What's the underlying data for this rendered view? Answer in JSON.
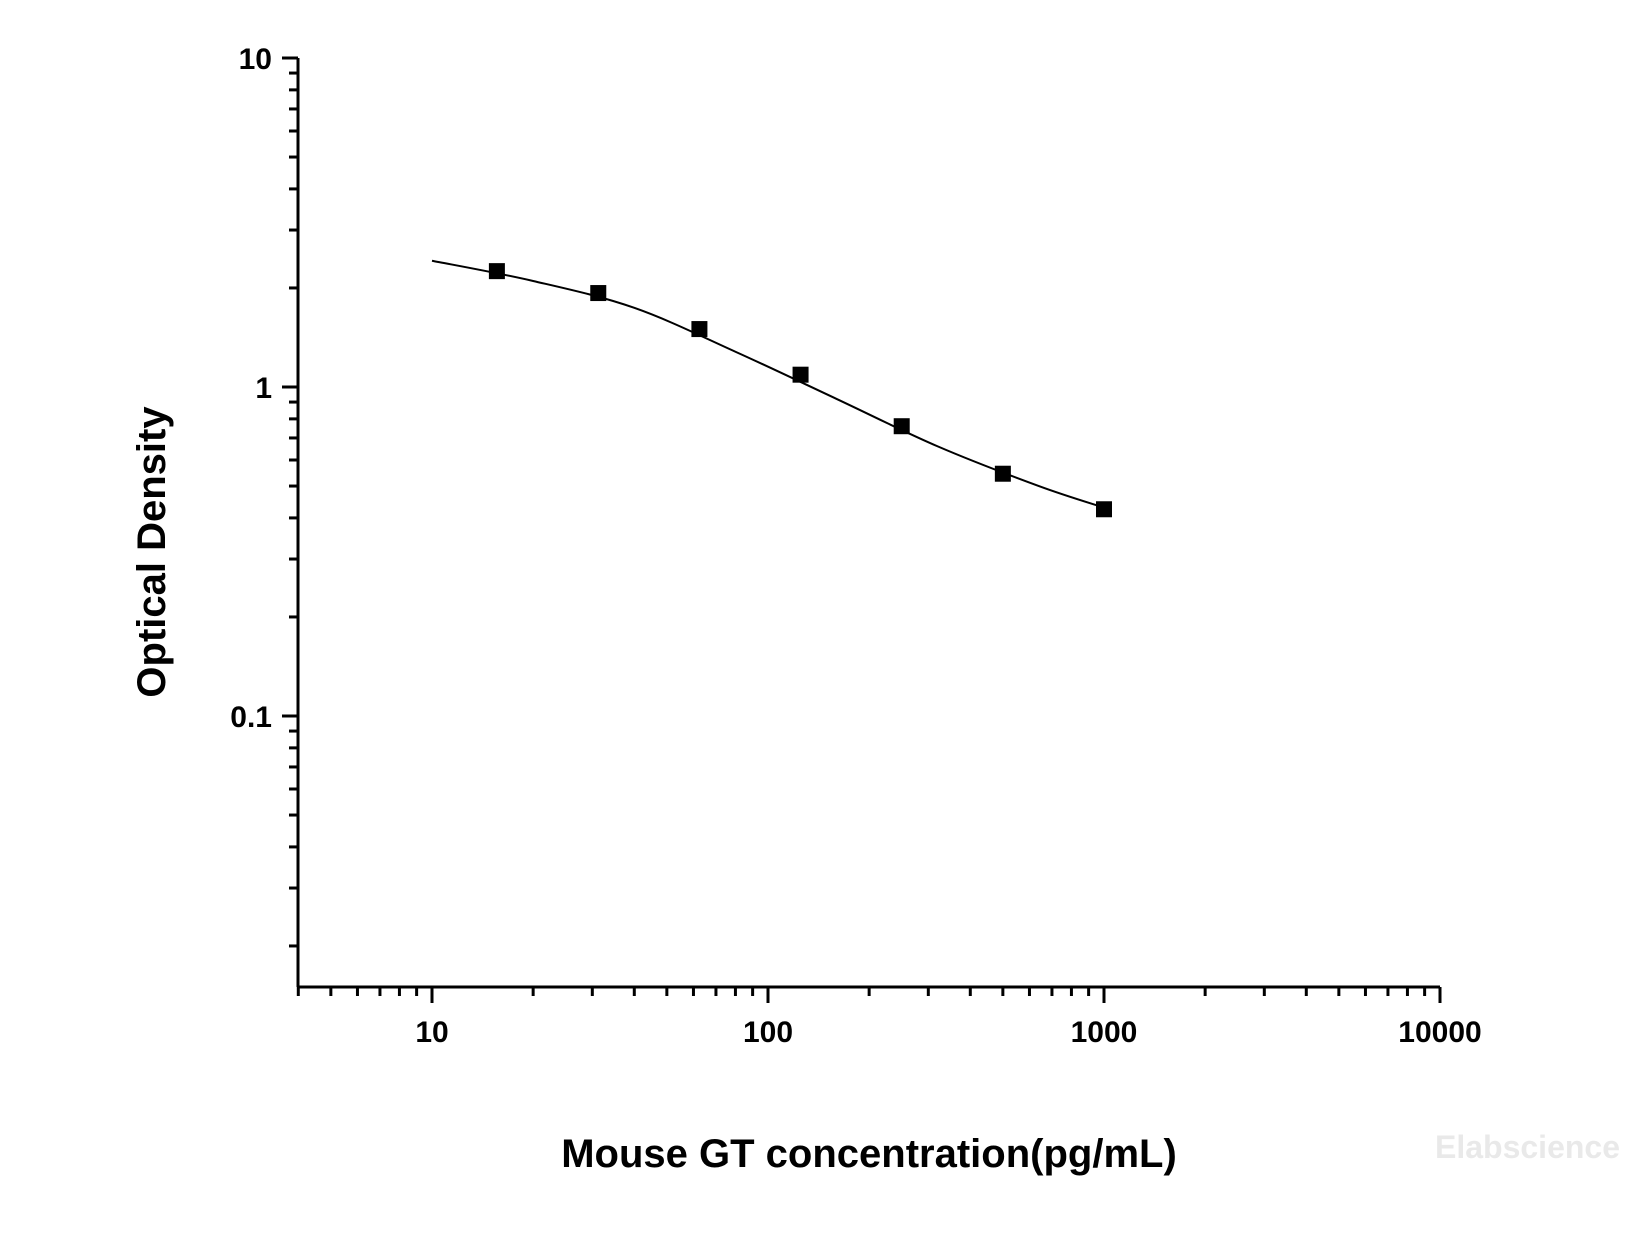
{
  "chart_data": {
    "type": "scatter",
    "title": "",
    "xlabel": "Mouse GT concentration(pg/mL)",
    "ylabel": "Optical Density",
    "xscale": "log",
    "yscale": "log",
    "xlim": [
      4,
      10000
    ],
    "ylim": [
      0.015,
      10
    ],
    "x_ticks": [
      {
        "value": 10,
        "label": "10"
      },
      {
        "value": 100,
        "label": "100"
      },
      {
        "value": 1000,
        "label": "1000"
      },
      {
        "value": 10000,
        "label": "10000"
      }
    ],
    "y_ticks": [
      {
        "value": 10,
        "label": "10"
      },
      {
        "value": 1,
        "label": "1"
      },
      {
        "value": 0.1,
        "label": "0.1"
      }
    ],
    "grid": false,
    "legend": "none",
    "series": [
      {
        "marker": "square",
        "color": "#000000",
        "x": [
          15.6,
          31.25,
          62.5,
          125,
          250,
          500,
          1000
        ],
        "y": [
          2.25,
          1.93,
          1.5,
          1.09,
          0.76,
          0.545,
          0.425
        ]
      }
    ],
    "fit_curve": {
      "color": "#000000",
      "x": [
        10,
        20,
        40,
        80,
        160,
        320,
        640,
        1000
      ],
      "y": [
        2.42,
        2.1,
        1.74,
        1.28,
        0.92,
        0.66,
        0.5,
        0.43
      ]
    }
  },
  "watermark": "Elabscience"
}
